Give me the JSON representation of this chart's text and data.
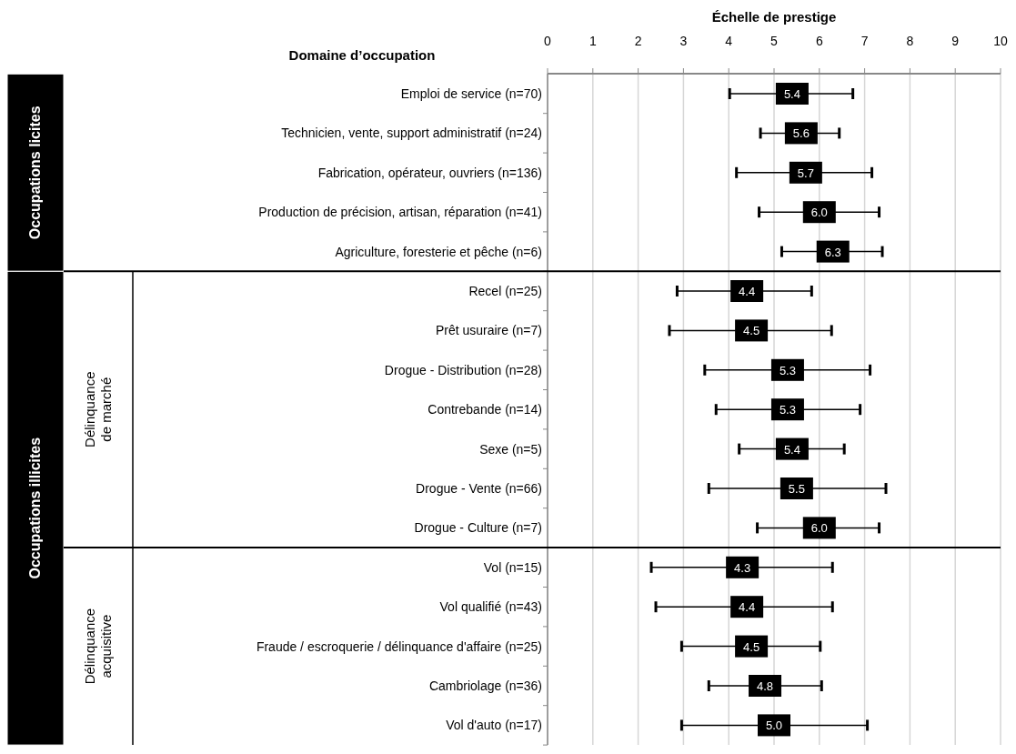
{
  "chart_data": {
    "type": "scatter",
    "orientation": "horizontal",
    "xlabel": "Échelle de prestige",
    "ylabel": "Domaine d’occupation",
    "categories": [
      "Emploi de service (n=70)",
      "Technicien, vente, support administratif (n=24)",
      "Fabrication, opérateur, ouvriers (n=136)",
      "Production de précision, artisan, réparation (n=41)",
      "Agriculture, foresterie et pêche (n=6)",
      "Recel (n=25)",
      "Prêt usuraire (n=7)",
      "Drogue - Distribution (n=28)",
      "Contrebande (n=14)",
      "Sexe (n=5)",
      "Drogue - Vente (n=66)",
      "Drogue - Culture (n=7)",
      "Vol (n=15)",
      "Vol qualifié (n=43)",
      "Fraude / escroquerie / délinquance d'affaire (n=25)",
      "Cambriolage (n=36)",
      "Vol d'auto (n=17)"
    ],
    "values": [
      5.4,
      5.6,
      5.7,
      6.0,
      6.3,
      4.4,
      4.5,
      5.3,
      5.3,
      5.4,
      5.5,
      6.0,
      4.3,
      4.4,
      4.5,
      4.8,
      5.0
    ],
    "errors": [
      [
        4.02,
        6.74
      ],
      [
        4.7,
        6.44
      ],
      [
        4.17,
        7.16
      ],
      [
        4.67,
        7.32
      ],
      [
        5.17,
        7.39
      ],
      [
        2.86,
        5.83
      ],
      [
        2.69,
        6.27
      ],
      [
        3.47,
        7.12
      ],
      [
        3.72,
        6.9
      ],
      [
        4.23,
        6.55
      ],
      [
        3.56,
        7.47
      ],
      [
        4.63,
        7.32
      ],
      [
        2.29,
        6.29
      ],
      [
        2.39,
        6.29
      ],
      [
        2.96,
        6.02
      ],
      [
        3.56,
        6.05
      ],
      [
        2.96,
        7.06
      ]
    ],
    "value_labels": [
      "5.4",
      "5.6",
      "5.7",
      "6.0",
      "6.3",
      "4.4",
      "4.5",
      "5.3",
      "5.3",
      "5.4",
      "5.5",
      "6.0",
      "4.3",
      "4.4",
      "4.5",
      "4.8",
      "5.0"
    ],
    "color": "#000000",
    "marker": "square",
    "xlim": [
      0,
      10
    ],
    "xticks": [
      0,
      1,
      2,
      3,
      4,
      5,
      6,
      7,
      8,
      9,
      10
    ],
    "grid": "x",
    "annotations": [
      "Occupations licites",
      "Occupations illicites",
      "Délinquance de marché",
      "Délinquance acquisitive"
    ]
  }
}
